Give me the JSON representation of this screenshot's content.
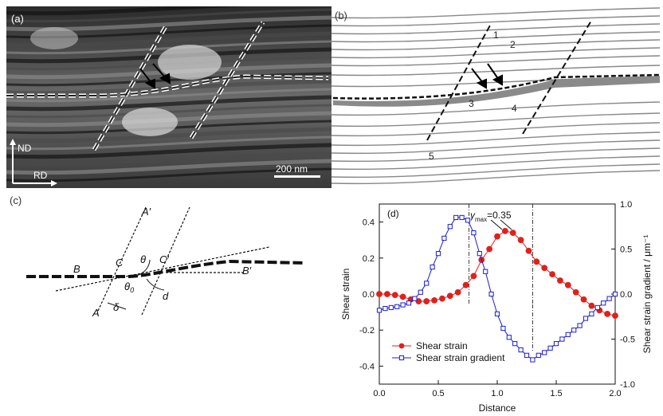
{
  "panels": {
    "a": {
      "label": "(a)",
      "axis_nd": "ND",
      "axis_rd": "RD",
      "scale_bar": "200 nm"
    },
    "b": {
      "label": "(b)",
      "lamella_numbers": [
        "1",
        "2",
        "3",
        "4",
        "5"
      ]
    },
    "c": {
      "label": "(c)",
      "letters": {
        "A_prime": "A′",
        "A": "A",
        "B": "B",
        "B_prime": "B′",
        "C": "C",
        "C_prime": "C′",
        "theta": "θ",
        "theta0": "θ",
        "theta0_sub": "0",
        "delta": "δ",
        "d": "d"
      }
    },
    "d": {
      "label": "(d)",
      "annotation_main": "γ",
      "annotation_sub": "max",
      "annotation_value": "=0.35"
    }
  },
  "chart_data": {
    "type": "line",
    "xlabel": "Distance",
    "ylabel_left": "Shear strain",
    "ylabel_right": "Shear strain gradient / μm⁻¹",
    "xlim": [
      0.0,
      2.0
    ],
    "ylim_left": [
      -0.5,
      0.5
    ],
    "ylim_right": [
      -1.0,
      1.0
    ],
    "x_ticks": [
      "0.0",
      "0.5",
      "1.0",
      "1.5",
      "2.0"
    ],
    "y_ticks_left": [
      "-0.4",
      "-0.2",
      "0.0",
      "0.2",
      "0.4"
    ],
    "y_ticks_right": [
      "-1.0",
      "-0.5",
      "0.0",
      "0.5",
      "1.0"
    ],
    "vlines_x": [
      0.76,
      1.3
    ],
    "series": [
      {
        "name": "Shear strain",
        "axis": "left",
        "color": "#e0201b",
        "marker": "filled-circle",
        "x": [
          0.0,
          0.0667,
          0.1333,
          0.2,
          0.2667,
          0.3333,
          0.4,
          0.4667,
          0.5333,
          0.6,
          0.6667,
          0.7333,
          0.8,
          0.8667,
          0.9333,
          1.0,
          1.0667,
          1.1333,
          1.2,
          1.2667,
          1.3333,
          1.4,
          1.4667,
          1.5333,
          1.6,
          1.6667,
          1.7333,
          1.8,
          1.8667,
          1.9333,
          2.0
        ],
        "y": [
          0.0,
          0.0,
          -0.005,
          -0.015,
          -0.03,
          -0.04,
          -0.04,
          -0.035,
          -0.025,
          -0.01,
          0.01,
          0.05,
          0.1,
          0.19,
          0.25,
          0.32,
          0.35,
          0.34,
          0.3,
          0.24,
          0.18,
          0.145,
          0.11,
          0.075,
          0.05,
          0.01,
          -0.03,
          -0.065,
          -0.09,
          -0.11,
          -0.12
        ]
      },
      {
        "name": "Shear strain gradient",
        "axis": "right",
        "color": "#1c1ccf",
        "marker": "open-square",
        "x": [
          0.0,
          0.05,
          0.1,
          0.15,
          0.2,
          0.25,
          0.3,
          0.35,
          0.4,
          0.45,
          0.5,
          0.55,
          0.6,
          0.65,
          0.7,
          0.75,
          0.8,
          0.85,
          0.9,
          0.95,
          1.0,
          1.05,
          1.1,
          1.15,
          1.2,
          1.25,
          1.3,
          1.35,
          1.4,
          1.45,
          1.5,
          1.55,
          1.6,
          1.65,
          1.7,
          1.75,
          1.8,
          1.85,
          1.9,
          1.95,
          2.0
        ],
        "y": [
          -0.18,
          -0.16,
          -0.15,
          -0.14,
          -0.12,
          -0.1,
          -0.05,
          0.02,
          0.12,
          0.3,
          0.45,
          0.62,
          0.75,
          0.85,
          0.85,
          0.82,
          0.68,
          0.45,
          0.25,
          0.0,
          -0.22,
          -0.38,
          -0.48,
          -0.55,
          -0.62,
          -0.68,
          -0.73,
          -0.68,
          -0.65,
          -0.6,
          -0.55,
          -0.5,
          -0.45,
          -0.4,
          -0.35,
          -0.27,
          -0.22,
          -0.15,
          -0.1,
          -0.05,
          0.0
        ]
      }
    ]
  }
}
